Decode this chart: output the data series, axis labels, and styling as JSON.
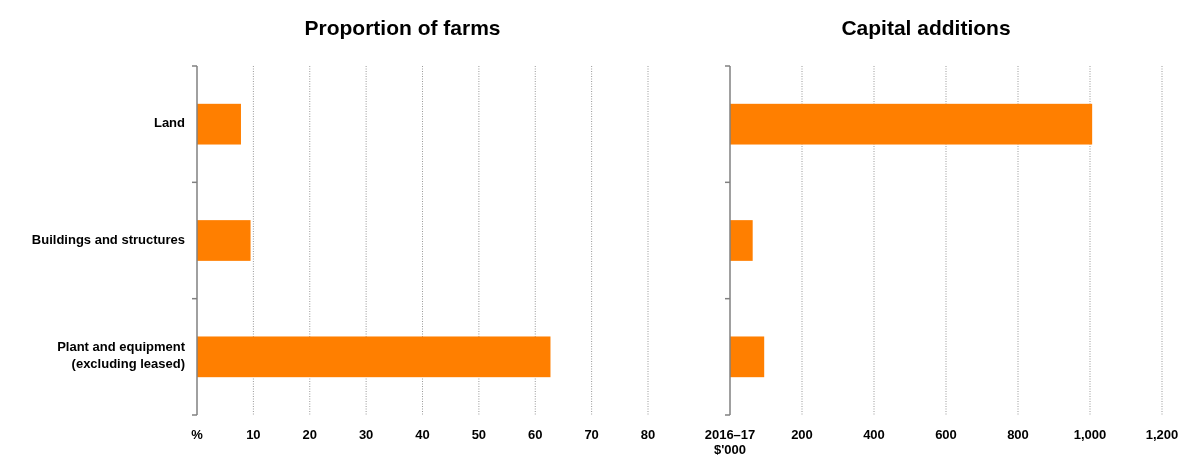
{
  "chart_data": [
    {
      "type": "bar",
      "orientation": "horizontal",
      "title": "Proportion of farms",
      "categories": [
        "Land",
        "Buildings and structures",
        "Plant and equipment (excluding leased)"
      ],
      "values": [
        7.8,
        9.5,
        62.7
      ],
      "color": "#ff7f00",
      "xlim": [
        0,
        80
      ],
      "xticks": [
        {
          "value": 0,
          "label": "%"
        },
        10,
        20,
        30,
        40,
        50,
        60,
        70,
        80
      ],
      "grid": "x"
    },
    {
      "type": "bar",
      "orientation": "horizontal",
      "title": "Capital additions",
      "categories": [
        null,
        null,
        null
      ],
      "values": [
        1006,
        63,
        95
      ],
      "color": "#ff7f00",
      "xlim": [
        0,
        1200
      ],
      "xticks": [
        {
          "value": 0,
          "label": "2016–17\n$'000"
        },
        {
          "value": 200,
          "label": "200"
        },
        {
          "value": 400,
          "label": "400"
        },
        {
          "value": 600,
          "label": "600"
        },
        {
          "value": 800,
          "label": "800"
        },
        {
          "value": 1000,
          "label": "1,000"
        },
        {
          "value": 1200,
          "label": "1,200"
        }
      ],
      "grid": "x"
    }
  ]
}
